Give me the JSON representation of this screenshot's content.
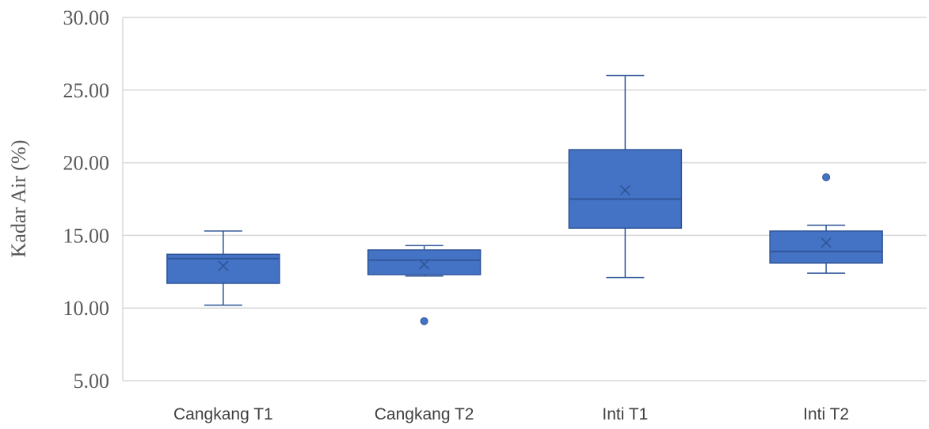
{
  "chart_data": {
    "type": "boxplot",
    "title": "",
    "xlabel": "",
    "ylabel": "Kadar Air (%)",
    "ylim": [
      5,
      30
    ],
    "yticks": [
      5,
      10,
      15,
      20,
      25,
      30
    ],
    "ytick_labels": [
      "5.00",
      "10.00",
      "15.00",
      "20.00",
      "25.00",
      "30.00"
    ],
    "grid": true,
    "legend": "none",
    "box_color": "#4472c4",
    "box_edge_color": "#2f5597",
    "grid_color": "#d9d9d9",
    "categories": [
      "Cangkang T1",
      "Cangkang T2",
      "Inti T1",
      "Inti T2"
    ],
    "boxes": [
      {
        "min": 10.2,
        "q1": 11.7,
        "median": 13.4,
        "q3": 13.7,
        "max": 15.3,
        "mean": 12.9,
        "outliers": []
      },
      {
        "min": 12.2,
        "q1": 12.3,
        "median": 13.3,
        "q3": 14.0,
        "max": 14.3,
        "mean": 13.0,
        "outliers": [
          9.1
        ]
      },
      {
        "min": 12.1,
        "q1": 15.5,
        "median": 17.5,
        "q3": 20.9,
        "max": 26.0,
        "mean": 18.1,
        "outliers": []
      },
      {
        "min": 12.4,
        "q1": 13.1,
        "median": 13.9,
        "q3": 15.3,
        "max": 15.7,
        "mean": 14.5,
        "outliers": [
          19.0
        ]
      }
    ]
  }
}
